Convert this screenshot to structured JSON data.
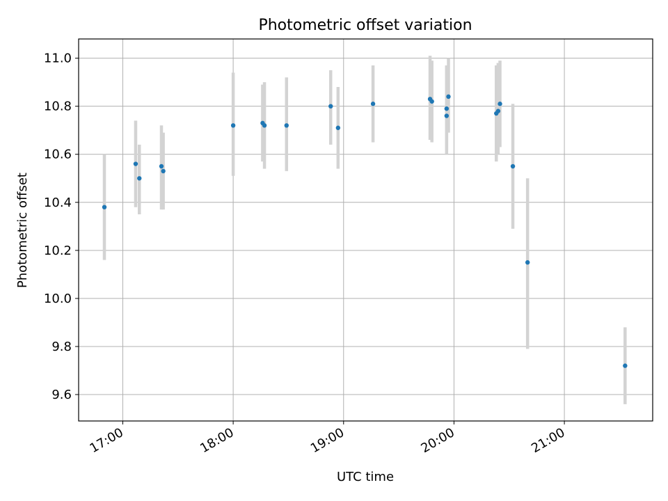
{
  "chart_data": {
    "type": "scatter",
    "title": "Photometric offset variation",
    "xlabel": "UTC time",
    "ylabel": "Photometric offset",
    "x_ticks": [
      "17:00",
      "18:00",
      "19:00",
      "20:00",
      "21:00"
    ],
    "y_ticks": [
      "9.6",
      "9.8",
      "10.0",
      "10.2",
      "10.4",
      "10.6",
      "10.8",
      "11.0"
    ],
    "xlim": [
      "16:36",
      "21:48"
    ],
    "ylim": [
      9.49,
      11.08
    ],
    "grid": true,
    "marker_color": "#1f77b4",
    "errorbar_color": "#d3d3d3",
    "points": [
      {
        "t": "16:50",
        "y": 10.38,
        "ylo": 10.16,
        "yhi": 10.6
      },
      {
        "t": "17:07",
        "y": 10.56,
        "ylo": 10.38,
        "yhi": 10.74
      },
      {
        "t": "17:09",
        "y": 10.5,
        "ylo": 10.35,
        "yhi": 10.64
      },
      {
        "t": "17:21",
        "y": 10.55,
        "ylo": 10.37,
        "yhi": 10.72
      },
      {
        "t": "17:22",
        "y": 10.53,
        "ylo": 10.37,
        "yhi": 10.69
      },
      {
        "t": "18:00",
        "y": 10.72,
        "ylo": 10.51,
        "yhi": 10.94
      },
      {
        "t": "18:16",
        "y": 10.73,
        "ylo": 10.57,
        "yhi": 10.89
      },
      {
        "t": "18:17",
        "y": 10.72,
        "ylo": 10.54,
        "yhi": 10.9
      },
      {
        "t": "18:29",
        "y": 10.72,
        "ylo": 10.53,
        "yhi": 10.92
      },
      {
        "t": "18:53",
        "y": 10.8,
        "ylo": 10.64,
        "yhi": 10.95
      },
      {
        "t": "18:57",
        "y": 10.71,
        "ylo": 10.54,
        "yhi": 10.88
      },
      {
        "t": "19:16",
        "y": 10.81,
        "ylo": 10.65,
        "yhi": 10.97
      },
      {
        "t": "19:47",
        "y": 10.83,
        "ylo": 10.66,
        "yhi": 11.01
      },
      {
        "t": "19:48",
        "y": 10.82,
        "ylo": 10.65,
        "yhi": 10.99
      },
      {
        "t": "19:56",
        "y": 10.76,
        "ylo": 10.6,
        "yhi": 10.96
      },
      {
        "t": "19:56",
        "y": 10.79,
        "ylo": 10.62,
        "yhi": 10.97
      },
      {
        "t": "19:57",
        "y": 10.84,
        "ylo": 10.69,
        "yhi": 11.0
      },
      {
        "t": "20:23",
        "y": 10.77,
        "ylo": 10.57,
        "yhi": 10.97
      },
      {
        "t": "20:24",
        "y": 10.78,
        "ylo": 10.6,
        "yhi": 10.98
      },
      {
        "t": "20:25",
        "y": 10.81,
        "ylo": 10.63,
        "yhi": 10.99
      },
      {
        "t": "20:32",
        "y": 10.55,
        "ylo": 10.29,
        "yhi": 10.81
      },
      {
        "t": "20:40",
        "y": 10.15,
        "ylo": 9.79,
        "yhi": 10.5
      },
      {
        "t": "21:33",
        "y": 9.72,
        "ylo": 9.56,
        "yhi": 9.88
      }
    ]
  }
}
